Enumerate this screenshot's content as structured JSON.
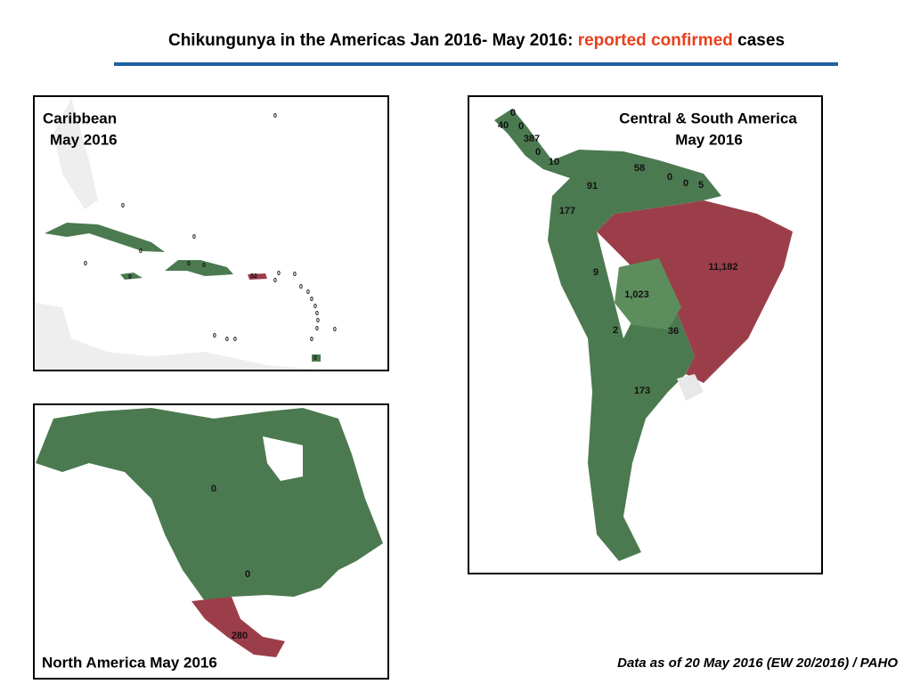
{
  "header": {
    "title_start": "Chikungunya in the Americas Jan 2016- May 2016:",
    "title_highlight": "reported confirmed",
    "title_end": "cases"
  },
  "caribbean": {
    "title": [
      "Caribbean",
      "May 2016"
    ],
    "labels": [
      0,
      0,
      0,
      0,
      0,
      0,
      0,
      0,
      52,
      0,
      0,
      0,
      0,
      0,
      0,
      0,
      0,
      0,
      0,
      0,
      0,
      0,
      0,
      0,
      0
    ]
  },
  "central_south_america": {
    "title": [
      "Central & South America",
      "May 2016"
    ],
    "labels": [
      0,
      40,
      0,
      387,
      0,
      10,
      58,
      91,
      0,
      0,
      5,
      177,
      "11,182",
      9,
      "1,023",
      2,
      36,
      173
    ]
  },
  "north_america": {
    "title": "North America May 2016",
    "labels": [
      0,
      0,
      280
    ]
  },
  "footer": {
    "source": "Data as of 20 May 2016 (EW 20/2016) / PAHO"
  }
}
